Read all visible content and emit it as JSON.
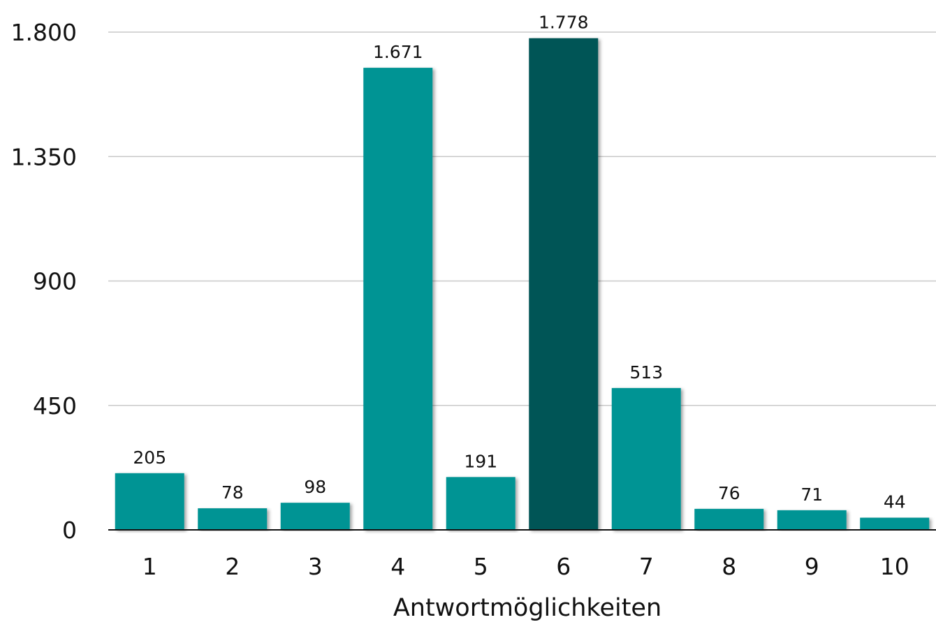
{
  "chart_data": {
    "type": "bar",
    "title": "",
    "xlabel": "Antwortmöglichkeiten",
    "ylabel": "",
    "categories": [
      "1",
      "2",
      "3",
      "4",
      "5",
      "6",
      "7",
      "8",
      "9",
      "10"
    ],
    "values": [
      205,
      78,
      98,
      1671,
      191,
      1778,
      513,
      76,
      71,
      44
    ],
    "value_labels": [
      "205",
      "78",
      "98",
      "1.671",
      "191",
      "1.778",
      "513",
      "76",
      "71",
      "44"
    ],
    "ylim": [
      0,
      1800
    ],
    "yticks": [
      0,
      450,
      900,
      1350,
      1800
    ],
    "ytick_labels": [
      "0",
      "450",
      "900",
      "1.350",
      "1.800"
    ],
    "grid": true,
    "legend": "none",
    "colors": {
      "bar": "#009494",
      "highlight_bar": "#035557",
      "gridline": "#c8c8c8",
      "axis": "#111111"
    },
    "highlight_index": 5
  }
}
